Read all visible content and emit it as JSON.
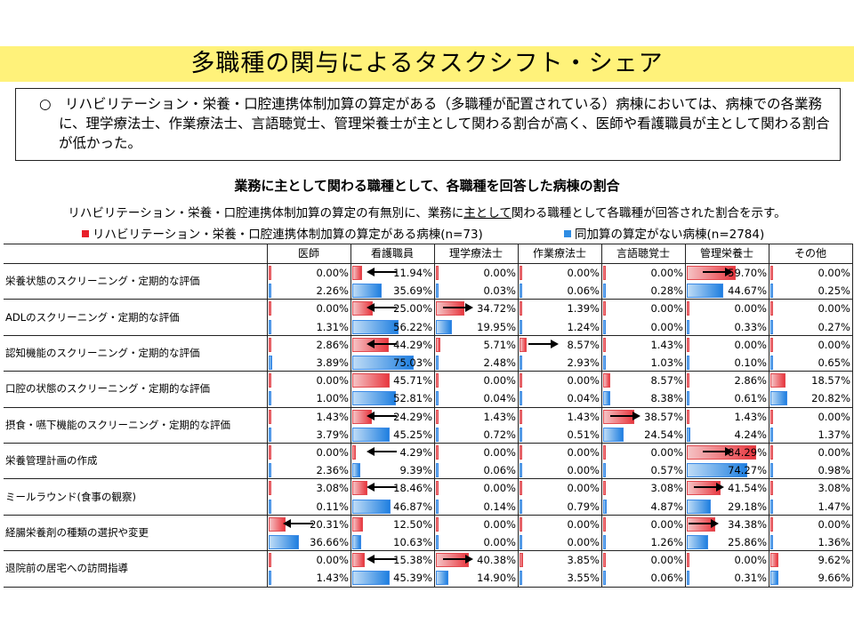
{
  "header": {
    "title": "多職種の関与によるタスクシフト・シェア"
  },
  "summary": {
    "text": "○　リハビリテーション・栄養・口腔連携体制加算の算定がある（多職種が配置されている）病棟においては、病棟での各業務に、理学療法士、作業療法士、言語聴覚士、管理栄養士が主として関わる割合が高く、医師や看護職員が主として関わる割合が低かった。"
  },
  "chart_title": "業務に主として関わる職種として、各職種を回答した病棟の割合",
  "description": {
    "before": "リハビリテーション・栄養・口腔連携体制加算の算定の有無別に、業務に",
    "underlined": "主として",
    "after": "関わる職種として各職種が回答された割合を示す。"
  },
  "legend": [
    {
      "label": "リハビリテーション・栄養・口腔連携体制加算の算定がある病棟(n=73)",
      "color": "#e8202a"
    },
    {
      "label": "同加算の算定がない病棟(n=2784)",
      "color": "#2f8de4"
    }
  ],
  "colors": {
    "with_addition": "#e8373f",
    "without_addition": "#1f7fe0",
    "title_bg": "#fff27a"
  },
  "chart_data": {
    "type": "table",
    "columns": [
      "医師",
      "看護職員",
      "理学療法士",
      "作業療法士",
      "言語聴覚士",
      "管理栄養士",
      "その他"
    ],
    "series_names": [
      "リハビリテーション・栄養・口腔連携体制加算の算定がある病棟(n=73)",
      "同加算の算定がない病棟(n=2784)"
    ],
    "rows": [
      {
        "label": "栄養状態のスクリーニング・定期的な評価",
        "with": [
          "0.00%",
          "11.94%",
          "0.00%",
          "0.00%",
          "0.00%",
          "59.70%",
          "0.00%"
        ],
        "without": [
          "2.26%",
          "35.69%",
          "0.03%",
          "0.06%",
          "0.28%",
          "44.67%",
          "0.25%"
        ],
        "arrows": [
          {
            "col": 1,
            "dir": "left"
          },
          {
            "col": 5,
            "dir": "right"
          }
        ]
      },
      {
        "label": "ADLのスクリーニング・定期的な評価",
        "with": [
          "0.00%",
          "25.00%",
          "34.72%",
          "1.39%",
          "0.00%",
          "0.00%",
          "0.00%"
        ],
        "without": [
          "1.31%",
          "56.22%",
          "19.95%",
          "1.24%",
          "0.00%",
          "0.33%",
          "0.27%"
        ],
        "arrows": [
          {
            "col": 1,
            "dir": "left"
          },
          {
            "col": 2,
            "dir": "right"
          }
        ]
      },
      {
        "label": "認知機能のスクリーニング・定期的な評価",
        "with": [
          "2.86%",
          "44.29%",
          "5.71%",
          "8.57%",
          "1.43%",
          "0.00%",
          "0.00%"
        ],
        "without": [
          "3.89%",
          "75.03%",
          "2.48%",
          "2.93%",
          "1.03%",
          "0.10%",
          "0.65%"
        ],
        "arrows": [
          {
            "col": 1,
            "dir": "left"
          },
          {
            "col": 3,
            "dir": "right"
          }
        ]
      },
      {
        "label": "口腔の状態のスクリーニング・定期的な評価",
        "with": [
          "0.00%",
          "45.71%",
          "0.00%",
          "0.00%",
          "8.57%",
          "2.86%",
          "18.57%"
        ],
        "without": [
          "1.00%",
          "52.81%",
          "0.04%",
          "0.04%",
          "8.38%",
          "0.61%",
          "20.82%"
        ],
        "arrows": []
      },
      {
        "label": "摂食・嚥下機能のスクリーニング・定期的な評価",
        "with": [
          "1.43%",
          "24.29%",
          "1.43%",
          "1.43%",
          "38.57%",
          "1.43%",
          "0.00%"
        ],
        "without": [
          "3.79%",
          "45.25%",
          "0.72%",
          "0.51%",
          "24.54%",
          "4.24%",
          "1.37%"
        ],
        "arrows": [
          {
            "col": 1,
            "dir": "left"
          },
          {
            "col": 4,
            "dir": "right"
          }
        ]
      },
      {
        "label": "栄養管理計画の作成",
        "with": [
          "0.00%",
          "4.29%",
          "0.00%",
          "0.00%",
          "0.00%",
          "84.29%",
          "0.00%"
        ],
        "without": [
          "2.36%",
          "9.39%",
          "0.06%",
          "0.00%",
          "0.57%",
          "74.27%",
          "0.98%"
        ],
        "arrows": [
          {
            "col": 1,
            "dir": "left"
          },
          {
            "col": 5,
            "dir": "right"
          }
        ]
      },
      {
        "label": "ミールラウンド(食事の観察)",
        "with": [
          "3.08%",
          "18.46%",
          "0.00%",
          "0.00%",
          "3.08%",
          "41.54%",
          "3.08%"
        ],
        "without": [
          "0.11%",
          "46.87%",
          "0.14%",
          "0.79%",
          "4.87%",
          "29.18%",
          "1.47%"
        ],
        "arrows": [
          {
            "col": 1,
            "dir": "left"
          },
          {
            "col": 5,
            "dir": "right"
          }
        ]
      },
      {
        "label": "経腸栄養剤の種類の選択や変更",
        "with": [
          "20.31%",
          "12.50%",
          "0.00%",
          "0.00%",
          "0.00%",
          "34.38%",
          "0.00%"
        ],
        "without": [
          "36.66%",
          "10.63%",
          "0.00%",
          "0.00%",
          "1.26%",
          "25.86%",
          "1.36%"
        ],
        "arrows": [
          {
            "col": 0,
            "dir": "left"
          },
          {
            "col": 5,
            "dir": "right"
          }
        ]
      },
      {
        "label": "退院前の居宅への訪問指導",
        "with": [
          "0.00%",
          "15.38%",
          "40.38%",
          "3.85%",
          "0.00%",
          "0.00%",
          "9.62%"
        ],
        "without": [
          "1.43%",
          "45.39%",
          "14.90%",
          "3.55%",
          "0.06%",
          "0.31%",
          "9.66%"
        ],
        "arrows": [
          {
            "col": 1,
            "dir": "left"
          },
          {
            "col": 2,
            "dir": "right"
          }
        ]
      }
    ]
  }
}
